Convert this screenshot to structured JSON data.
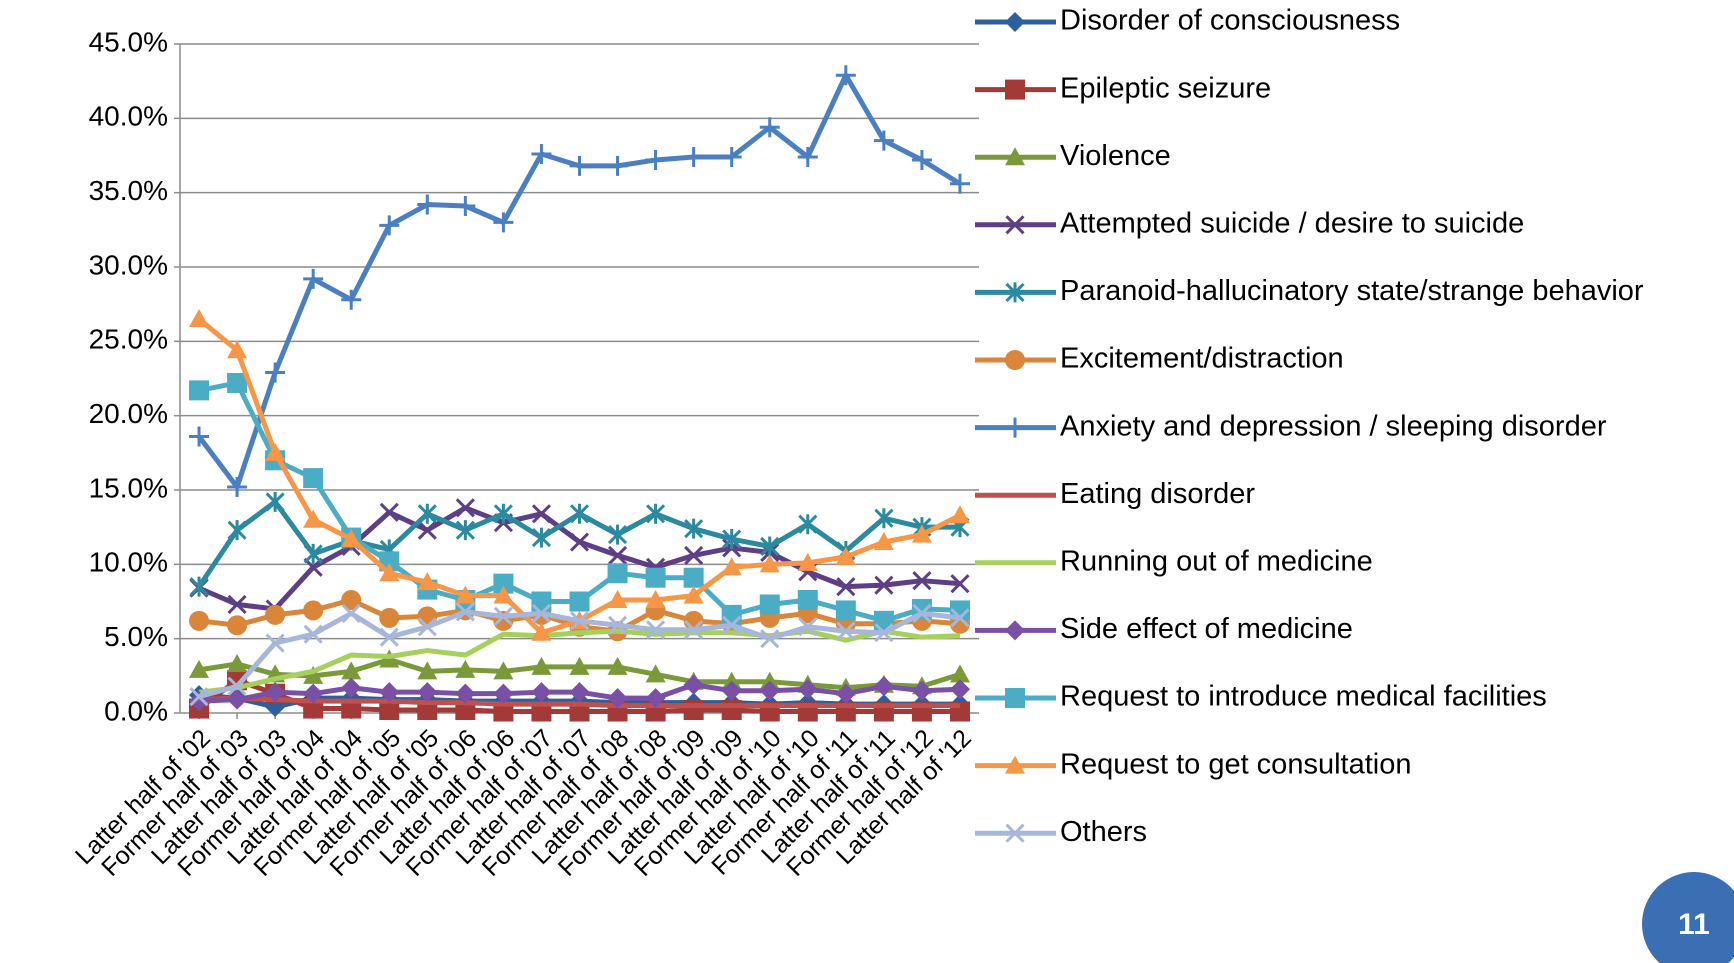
{
  "chart_data": {
    "type": "line",
    "categories": [
      "Latter half of '02",
      "Former half of '03",
      "Latter half of '03",
      "Former half of '04",
      "Latter half of '04",
      "Former half of '05",
      "Latter half of '05",
      "Former half of '06",
      "Latter half of '06",
      "Former half of '07",
      "Latter half of '07",
      "Former half of '08",
      "Latter half of '08",
      "Former half of '09",
      "Latter half of '09",
      "Former half of '10",
      "Latter half of '10",
      "Former half of '11",
      "Latter half of '11",
      "Former half of '12",
      "Latter half of '12"
    ],
    "ylim": [
      0,
      45
    ],
    "yticks": [
      {
        "value": 0,
        "label": "0.0%"
      },
      {
        "value": 5,
        "label": "5.0%"
      },
      {
        "value": 10,
        "label": "10.0%"
      },
      {
        "value": 15,
        "label": "15.0%"
      },
      {
        "value": 20,
        "label": "20.0%"
      },
      {
        "value": 25,
        "label": "25.0%"
      },
      {
        "value": 30,
        "label": "30.0%"
      },
      {
        "value": 35,
        "label": "35.0%"
      },
      {
        "value": 40,
        "label": "40.0%"
      },
      {
        "value": 45,
        "label": "45.0%"
      }
    ],
    "grid": true,
    "legend": "right",
    "series": [
      {
        "name": "Disorder of consciousness",
        "color": "#2c5f9e",
        "marker": "diamond",
        "values": [
          1.2,
          1.0,
          0.4,
          1.0,
          1.0,
          0.9,
          0.9,
          0.8,
          0.8,
          0.8,
          0.8,
          0.7,
          0.7,
          0.7,
          0.7,
          0.6,
          0.7,
          0.6,
          0.6,
          0.6,
          0.6
        ]
      },
      {
        "name": "Epileptic seizure",
        "color": "#a33a37",
        "marker": "square",
        "values": [
          0.3,
          2.2,
          1.3,
          0.3,
          0.3,
          0.2,
          0.2,
          0.2,
          0.1,
          0.1,
          0.1,
          0.1,
          0.1,
          0.2,
          0.2,
          0.1,
          0.1,
          0.1,
          0.1,
          0.1,
          0.1
        ]
      },
      {
        "name": "Violence",
        "color": "#7a9a3a",
        "marker": "triangle",
        "values": [
          2.9,
          3.3,
          2.6,
          2.5,
          2.8,
          3.6,
          2.8,
          2.9,
          2.8,
          3.1,
          3.1,
          3.1,
          2.6,
          2.1,
          2.1,
          2.1,
          1.9,
          1.7,
          1.9,
          1.8,
          2.6
        ]
      },
      {
        "name": "Attempted suicide / desire to suicide",
        "color": "#5e3f86",
        "marker": "x",
        "values": [
          8.4,
          7.3,
          7.0,
          9.8,
          11.2,
          13.5,
          12.3,
          13.8,
          12.8,
          13.4,
          11.5,
          10.6,
          9.8,
          10.6,
          11.1,
          10.8,
          9.5,
          8.5,
          8.6,
          8.9,
          8.7
        ]
      },
      {
        "name": "Paranoid-hallucinatory state/strange behavior",
        "color": "#2b8aa0",
        "marker": "asterisk",
        "values": [
          8.5,
          12.3,
          14.2,
          10.7,
          11.6,
          11.0,
          13.4,
          12.3,
          13.4,
          11.8,
          13.4,
          12.0,
          13.4,
          12.4,
          11.7,
          11.2,
          12.7,
          10.9,
          13.1,
          12.5,
          12.5
        ]
      },
      {
        "name": "Excitement/distraction",
        "color": "#d9863a",
        "marker": "circle",
        "values": [
          6.2,
          5.9,
          6.6,
          6.9,
          7.6,
          6.4,
          6.5,
          6.9,
          6.2,
          6.6,
          5.8,
          5.5,
          6.9,
          6.2,
          6.0,
          6.4,
          6.7,
          6.0,
          6.0,
          6.2,
          6.0
        ]
      },
      {
        "name": "Anxiety and depression  / sleeping disorder",
        "color": "#4a7fc1",
        "marker": "plus",
        "values": [
          18.6,
          15.2,
          22.9,
          29.2,
          27.8,
          32.8,
          34.2,
          34.1,
          33.0,
          37.6,
          36.8,
          36.8,
          37.2,
          37.4,
          37.4,
          39.4,
          37.4,
          42.9,
          38.5,
          37.2,
          35.6
        ]
      },
      {
        "name": "Eating disorder",
        "color": "#c0504d",
        "marker": "none",
        "values": [
          0.9,
          1.0,
          0.9,
          0.8,
          0.8,
          0.8,
          0.7,
          0.7,
          0.6,
          0.6,
          0.6,
          0.5,
          0.5,
          0.5,
          0.5,
          0.5,
          0.5,
          0.5,
          0.5,
          0.5,
          0.5
        ]
      },
      {
        "name": "Running out of medicine",
        "color": "#a6cf5c",
        "marker": "none",
        "values": [
          1.4,
          1.7,
          2.3,
          2.8,
          3.9,
          3.8,
          4.2,
          3.9,
          5.3,
          5.2,
          5.4,
          5.5,
          5.3,
          5.4,
          5.4,
          5.2,
          5.5,
          4.9,
          5.5,
          5.1,
          5.2
        ]
      },
      {
        "name": "Side effect of medicine",
        "color": "#7a4fa6",
        "marker": "diamond",
        "values": [
          0.8,
          0.9,
          1.4,
          1.3,
          1.7,
          1.4,
          1.4,
          1.3,
          1.3,
          1.4,
          1.4,
          1.0,
          1.0,
          1.9,
          1.5,
          1.5,
          1.6,
          1.3,
          1.8,
          1.5,
          1.6
        ]
      },
      {
        "name": "Request to introduce  medical facilities",
        "color": "#4bacc6",
        "marker": "square",
        "values": [
          21.7,
          22.2,
          17.0,
          15.8,
          11.8,
          10.2,
          8.3,
          7.6,
          8.7,
          7.5,
          7.5,
          9.4,
          9.1,
          9.1,
          6.6,
          7.3,
          7.6,
          6.9,
          6.2,
          7.0,
          6.9
        ]
      },
      {
        "name": "Request to get consultation",
        "color": "#f79646",
        "marker": "triangle",
        "values": [
          26.5,
          24.4,
          17.5,
          13.0,
          11.7,
          9.4,
          8.8,
          7.9,
          7.9,
          5.4,
          6.2,
          7.6,
          7.6,
          7.9,
          9.8,
          10.0,
          10.1,
          10.5,
          11.5,
          12.0,
          13.3
        ]
      },
      {
        "name": "Others",
        "color": "#a7b7d9",
        "marker": "x",
        "values": [
          1.1,
          1.8,
          4.7,
          5.3,
          6.7,
          5.1,
          5.8,
          6.8,
          6.5,
          6.7,
          6.2,
          5.9,
          5.6,
          5.6,
          5.9,
          5.0,
          5.8,
          5.5,
          5.4,
          6.7,
          6.4
        ]
      }
    ]
  },
  "slide": {
    "page_number": "11"
  }
}
